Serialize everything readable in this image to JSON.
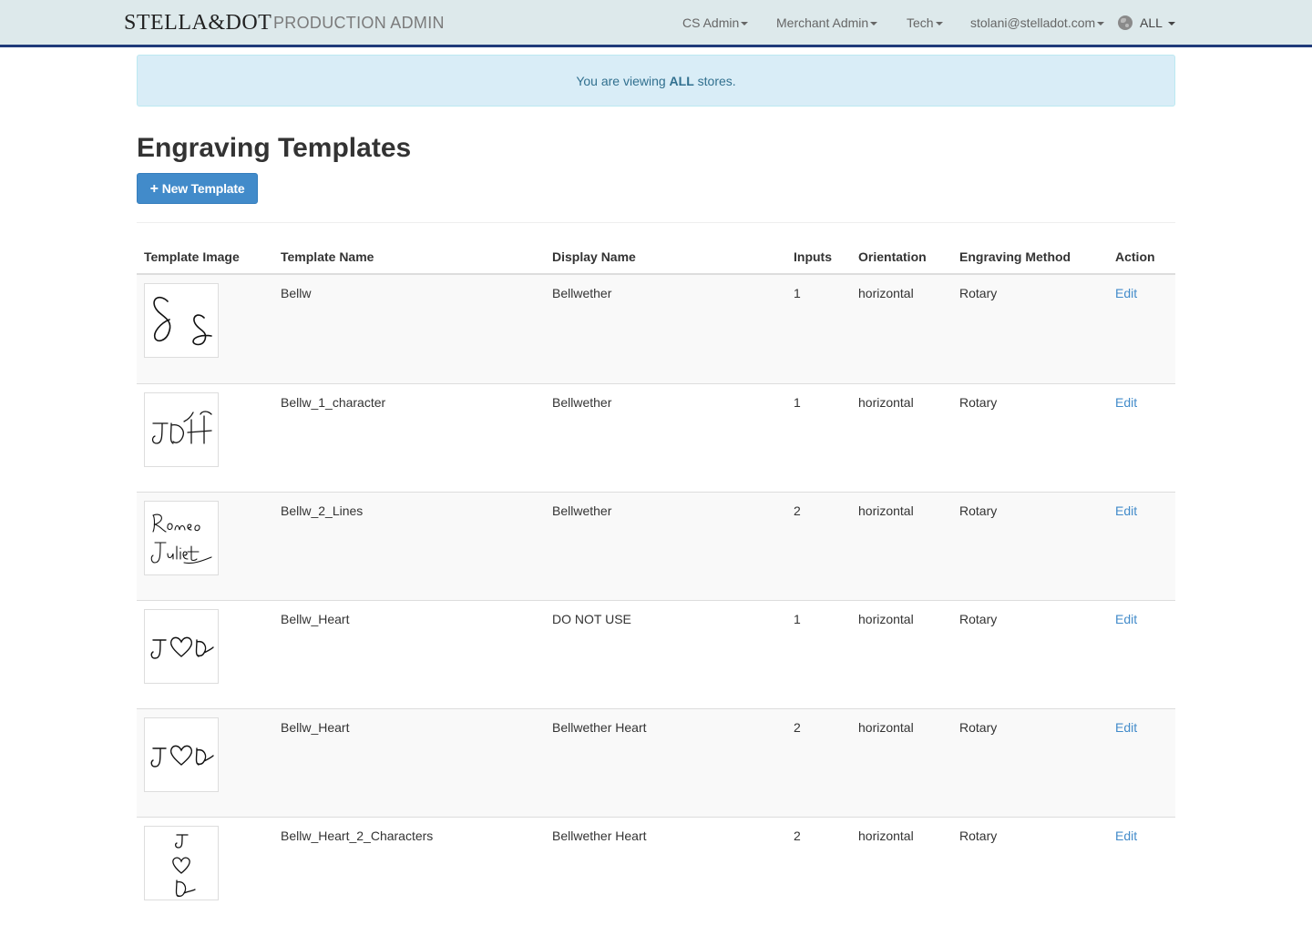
{
  "navbar": {
    "brand": "STELLA&DOT",
    "subtitle": "PRODUCTION ADMIN",
    "menus": [
      "CS Admin",
      "Merchant Admin",
      "Tech"
    ],
    "user": "stolani@stelladot.com",
    "store": "ALL",
    "colors": {
      "background": "#dde9eb",
      "border": "#1f3a7a"
    }
  },
  "alert": {
    "prefix": "You are viewing ",
    "emphasis": "ALL",
    "suffix": " stores."
  },
  "page": {
    "title": "Engraving Templates",
    "new_button": "New Template"
  },
  "table": {
    "headers": [
      "Template Image",
      "Template Name",
      "Display Name",
      "Inputs",
      "Orientation",
      "Engraving Method",
      "Action"
    ],
    "rows": [
      {
        "image_icon": "script-ss-engraving-icon",
        "name": "Bellw",
        "display": "Bellwether",
        "inputs": "1",
        "orientation": "horizontal",
        "method": "Rotary",
        "action": "Edit"
      },
      {
        "image_icon": "script-jdh-engraving-icon",
        "name": "Bellw_1_character",
        "display": "Bellwether",
        "inputs": "1",
        "orientation": "horizontal",
        "method": "Rotary",
        "action": "Edit"
      },
      {
        "image_icon": "script-romeo-juliet-engraving-icon",
        "name": "Bellw_2_Lines",
        "display": "Bellwether",
        "inputs": "2",
        "orientation": "horizontal",
        "method": "Rotary",
        "action": "Edit"
      },
      {
        "image_icon": "script-heart-engraving-icon",
        "name": "Bellw_Heart",
        "display": "DO NOT USE",
        "inputs": "1",
        "orientation": "horizontal",
        "method": "Rotary",
        "action": "Edit"
      },
      {
        "image_icon": "script-heart-engraving-icon",
        "name": "Bellw_Heart",
        "display": "Bellwether Heart",
        "inputs": "2",
        "orientation": "horizontal",
        "method": "Rotary",
        "action": "Edit"
      },
      {
        "image_icon": "script-heart-vertical-engraving-icon",
        "name": "Bellw_Heart_2_Characters",
        "display": "Bellwether Heart",
        "inputs": "2",
        "orientation": "horizontal",
        "method": "Rotary",
        "action": "Edit"
      }
    ]
  }
}
